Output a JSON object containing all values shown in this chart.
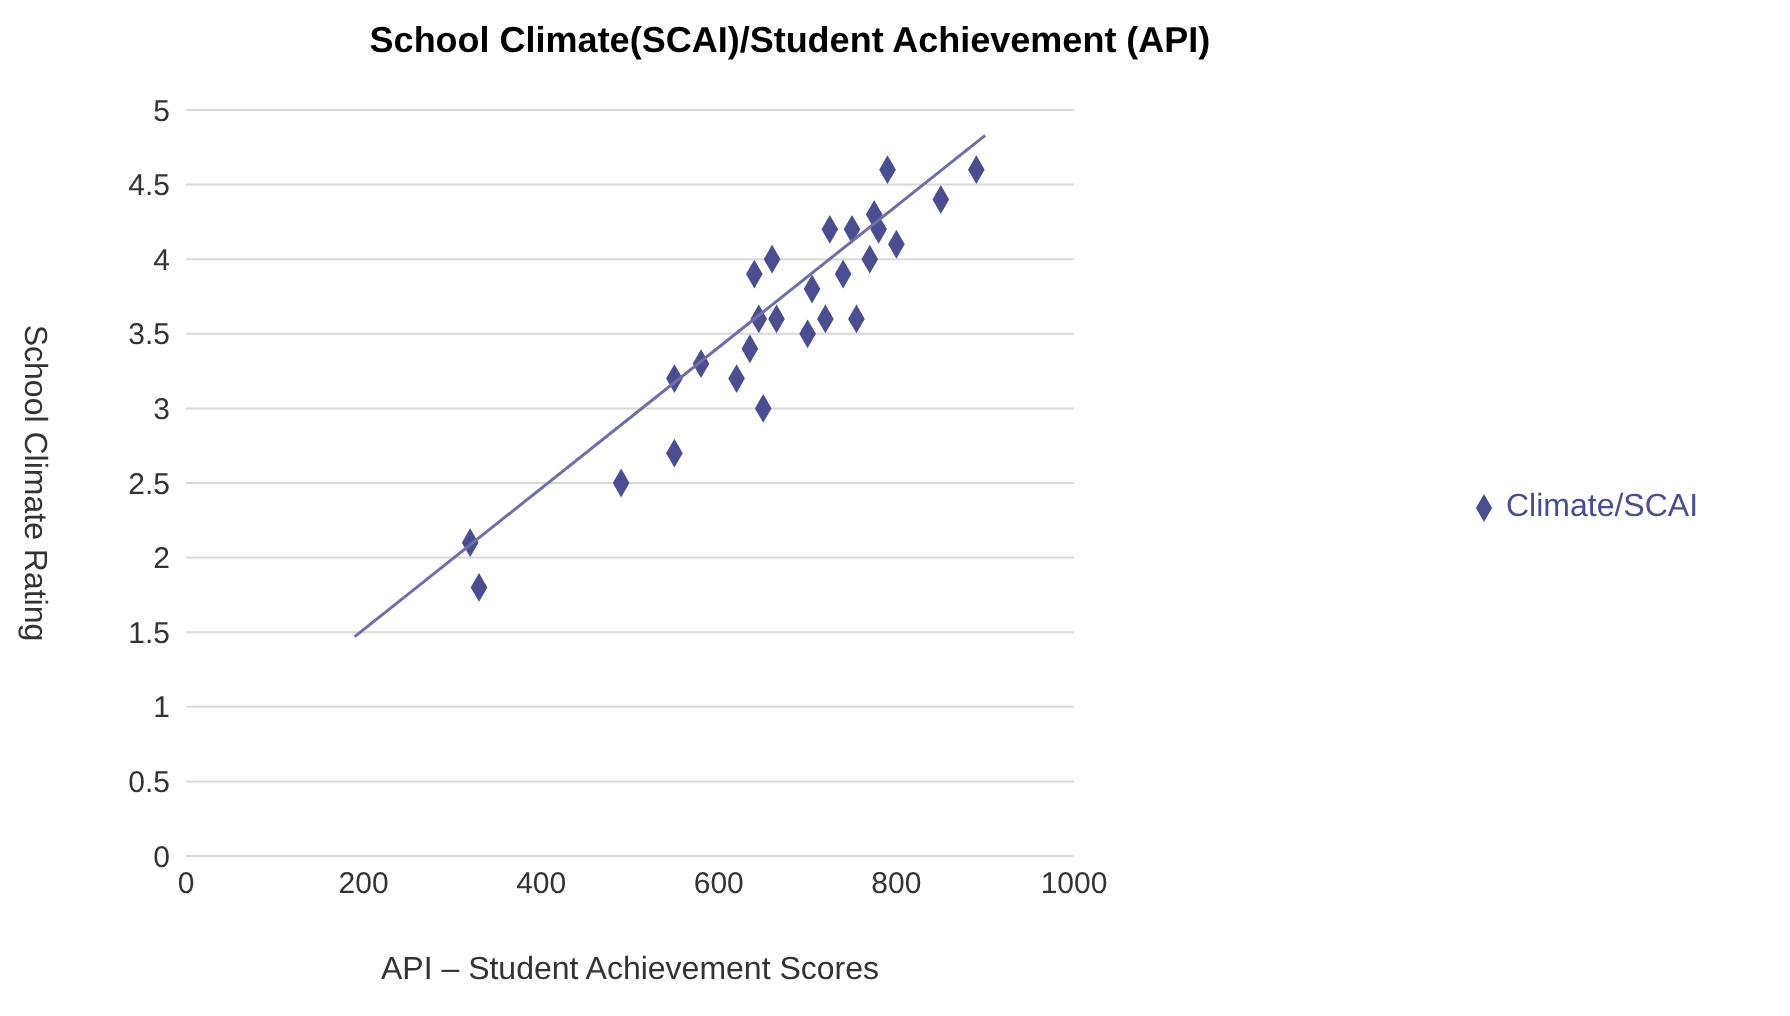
{
  "chart_data": {
    "type": "scatter",
    "title": "School Climate(SCAI)/Student Achievement (API)",
    "xlabel": "API – Student Achievement Scores",
    "ylabel": "School Climate Rating",
    "x": [
      320,
      330,
      490,
      550,
      550,
      580,
      620,
      635,
      640,
      645,
      650,
      660,
      665,
      700,
      705,
      720,
      725,
      740,
      750,
      755,
      770,
      775,
      780,
      790,
      800,
      850,
      890
    ],
    "series": [
      {
        "name": "Climate/SCAI",
        "color": "#4a4d8f",
        "marker": "diamond",
        "values": [
          2.1,
          1.8,
          2.5,
          3.2,
          2.7,
          3.3,
          3.2,
          3.4,
          3.9,
          3.6,
          3.0,
          4.0,
          3.6,
          3.5,
          3.8,
          3.6,
          4.2,
          3.9,
          4.2,
          3.6,
          4.0,
          4.3,
          4.2,
          4.6,
          4.1,
          4.4,
          4.6
        ]
      },
      {
        "type": "line",
        "color": "#6f6fa8",
        "marker": "none",
        "x": [
          190,
          900
        ],
        "values": [
          1.47,
          4.83
        ]
      }
    ],
    "xlim": [
      0,
      1000
    ],
    "xticks": [
      0,
      200,
      400,
      600,
      800,
      1000
    ],
    "ylim": [
      0,
      5
    ],
    "yticks": [
      0,
      0.5,
      1,
      1.5,
      2,
      2.5,
      3,
      3.5,
      4,
      4.5,
      5
    ],
    "grid": "y",
    "legend": "right"
  }
}
